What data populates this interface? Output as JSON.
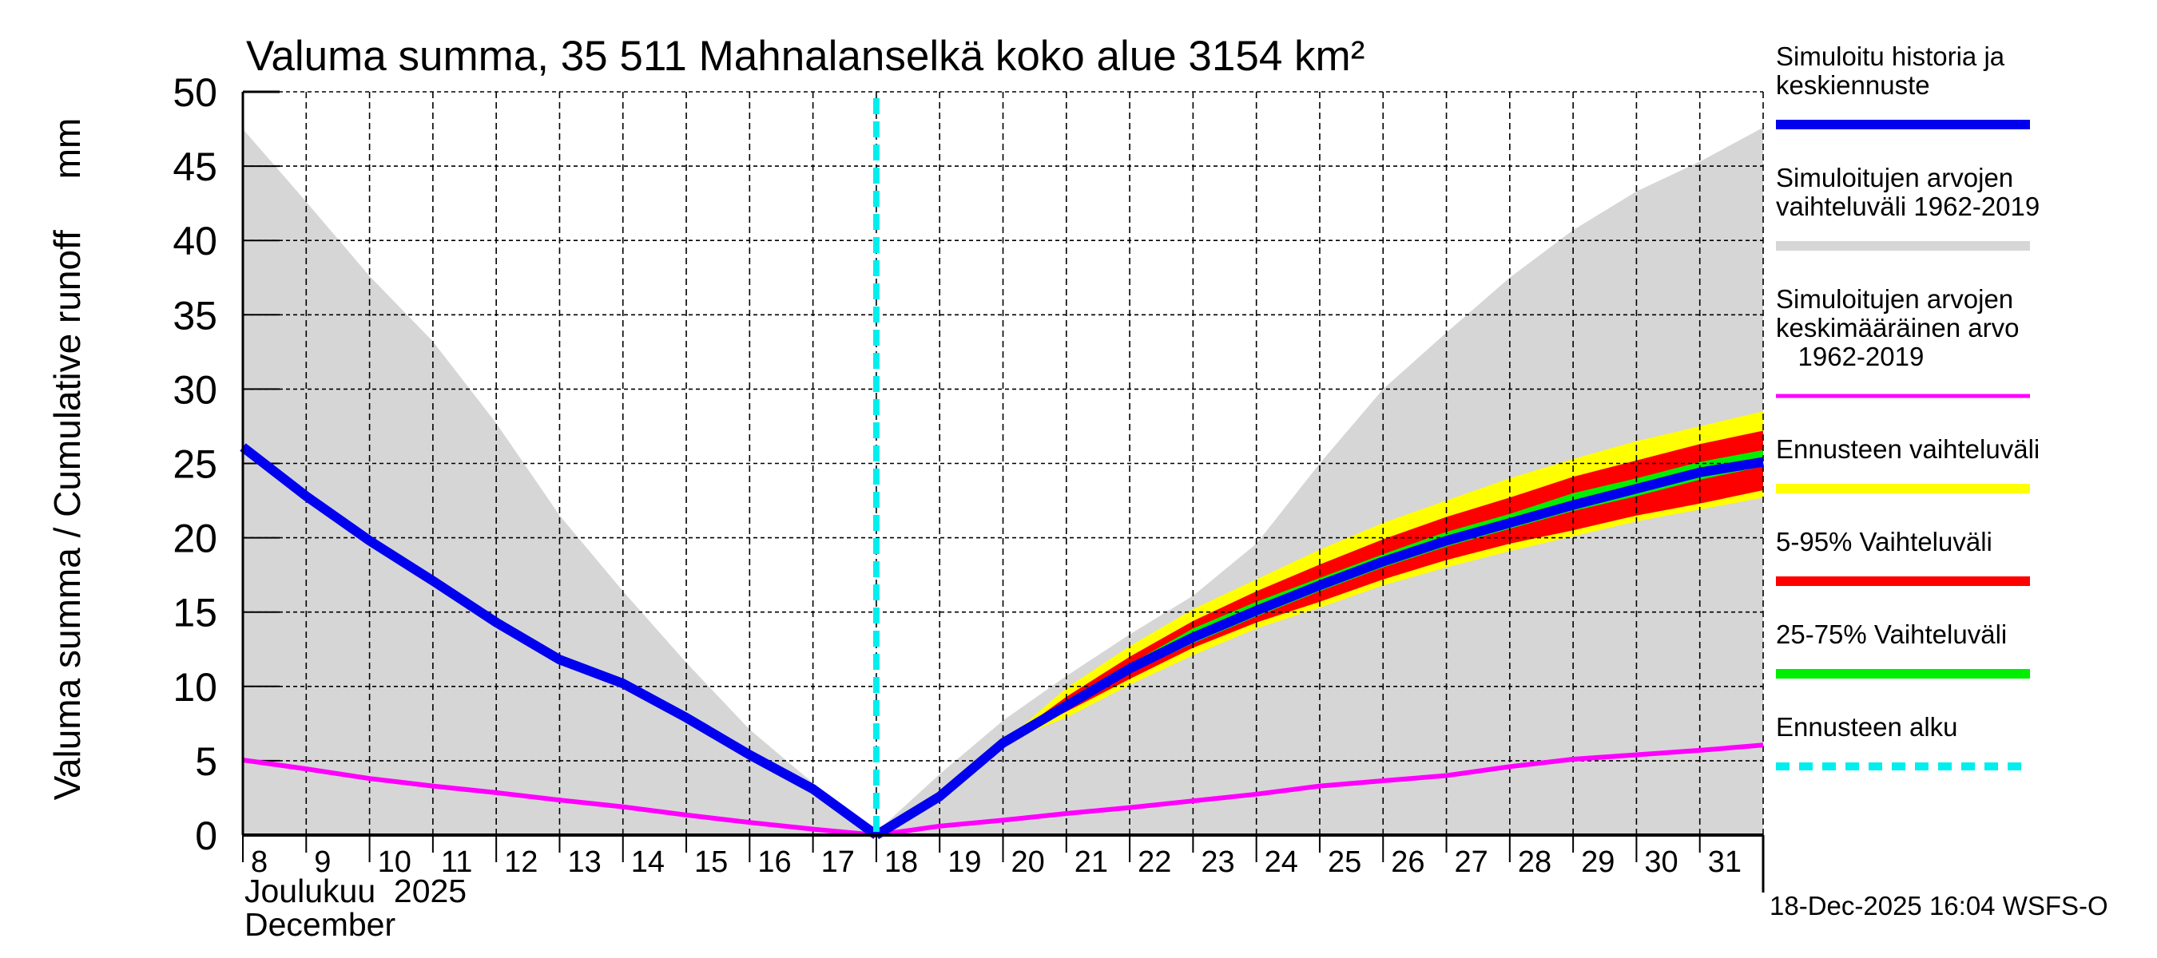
{
  "chart_data": {
    "type": "area",
    "title": "Valuma summa, 35 511 Mahnalanselkä koko alue 3154 km²",
    "ylabel": "Valuma summa / Cumulative runoff     mm",
    "xlabel_line1": "Joulukuu  2025",
    "xlabel_line2": "December",
    "ylim": [
      0,
      50
    ],
    "yticks": [
      0,
      5,
      10,
      15,
      20,
      25,
      30,
      35,
      40,
      45,
      50
    ],
    "xlim": [
      8,
      32
    ],
    "xticks": [
      8,
      9,
      10,
      11,
      12,
      13,
      14,
      15,
      16,
      17,
      18,
      19,
      20,
      21,
      22,
      23,
      24,
      25,
      26,
      27,
      28,
      29,
      30,
      31
    ],
    "grid": true,
    "legend_position": "right",
    "forecast_start_day": 18,
    "footer": "18-Dec-2025 16:04 WSFS-O",
    "colors": {
      "history": "#0000ee",
      "hist_range": "#d6d6d6",
      "hist_mean": "#ff00ff",
      "forecast_range": "#ffff00",
      "p5_95": "#ff0000",
      "p25_75": "#00ee00",
      "forecast_start": "#00eeee"
    },
    "legend": [
      {
        "key": "history",
        "label": [
          "Simuloitu historia ja",
          "keskiennuste"
        ],
        "style": "line"
      },
      {
        "key": "hist_range",
        "label": [
          "Simuloitujen arvojen",
          "vaihteluväli 1962-2019"
        ],
        "style": "line"
      },
      {
        "key": "hist_mean",
        "label": [
          "Simuloitujen arvojen",
          "keskimääräinen arvo",
          "   1962-2019"
        ],
        "style": "thin"
      },
      {
        "key": "forecast_range",
        "label": [
          "Ennusteen vaihteluväli"
        ],
        "style": "line"
      },
      {
        "key": "p5_95",
        "label": [
          "5-95% Vaihteluväli"
        ],
        "style": "line"
      },
      {
        "key": "p25_75",
        "label": [
          "25-75% Vaihteluväli"
        ],
        "style": "line"
      },
      {
        "key": "forecast_start",
        "label": [
          "Ennusteen alku"
        ],
        "style": "dashed"
      }
    ],
    "series": {
      "hist_range_upper": {
        "x": [
          8,
          9,
          10,
          11,
          12,
          13,
          14,
          15,
          16,
          17,
          18,
          19,
          20,
          21,
          22,
          23,
          24,
          25,
          26,
          27,
          28,
          29,
          30,
          31,
          32
        ],
        "y": [
          47.5,
          42.6,
          37.6,
          33.2,
          27.7,
          21.5,
          16.4,
          11.6,
          7.1,
          3.5,
          0.2,
          4.1,
          7.7,
          10.7,
          13.5,
          16.1,
          19.6,
          25.0,
          30.0,
          33.8,
          37.5,
          40.7,
          43.3,
          45.3,
          47.6
        ]
      },
      "hist_range_lower": {
        "x": [
          8,
          32
        ],
        "y": [
          0,
          0
        ]
      },
      "hist_mean": {
        "x": [
          8,
          9,
          10,
          11,
          12,
          13,
          14,
          15,
          16,
          17,
          18,
          19,
          20,
          21,
          22,
          23,
          24,
          25,
          26,
          27,
          28,
          29,
          30,
          31,
          32
        ],
        "y": [
          5.05,
          4.45,
          3.8,
          3.3,
          2.85,
          2.35,
          1.9,
          1.35,
          0.85,
          0.4,
          0.0,
          0.6,
          1.0,
          1.45,
          1.85,
          2.3,
          2.75,
          3.3,
          3.65,
          4.0,
          4.6,
          5.1,
          5.4,
          5.7,
          6.05
        ]
      },
      "history": {
        "x": [
          8,
          9,
          10,
          11,
          12,
          13,
          14,
          15,
          16,
          17,
          18
        ],
        "y": [
          26.1,
          22.8,
          19.8,
          17.1,
          14.3,
          11.8,
          10.2,
          7.9,
          5.4,
          3.1,
          0.0
        ]
      },
      "forecast_median": {
        "x": [
          18,
          19,
          20,
          21,
          22,
          23,
          24,
          25,
          26,
          27,
          28,
          29,
          30,
          31,
          32
        ],
        "y": [
          0.0,
          2.6,
          6.2,
          8.7,
          11.2,
          13.3,
          15.1,
          16.8,
          18.4,
          19.8,
          21.0,
          22.2,
          23.3,
          24.4,
          25.1
        ]
      },
      "forecast_band_x": [
        20,
        21,
        22,
        23,
        24,
        25,
        26,
        27,
        28,
        29,
        30,
        31,
        32
      ],
      "forecast_max": [
        6.2,
        9.9,
        12.7,
        15.2,
        17.2,
        19.2,
        21.0,
        22.5,
        24.0,
        25.3,
        26.5,
        27.5,
        28.5
      ],
      "forecast_min": [
        6.2,
        7.9,
        10.1,
        12.1,
        13.9,
        15.3,
        16.8,
        18.0,
        19.1,
        20.1,
        21.1,
        21.9,
        22.7
      ],
      "p95": [
        6.2,
        9.3,
        12.0,
        14.4,
        16.4,
        18.2,
        19.9,
        21.4,
        22.7,
        24.1,
        25.2,
        26.3,
        27.2
      ],
      "p5": [
        6.2,
        8.3,
        10.5,
        12.6,
        14.3,
        15.7,
        17.2,
        18.5,
        19.6,
        20.5,
        21.5,
        22.3,
        23.2
      ],
      "p75": [
        6.2,
        8.95,
        11.5,
        13.9,
        15.7,
        17.3,
        18.9,
        20.4,
        21.6,
        23.0,
        24.0,
        25.1,
        25.9
      ],
      "p25": [
        6.2,
        8.5,
        10.9,
        12.9,
        14.7,
        16.4,
        18.0,
        19.4,
        20.6,
        21.8,
        22.8,
        23.9,
        24.8
      ]
    }
  }
}
